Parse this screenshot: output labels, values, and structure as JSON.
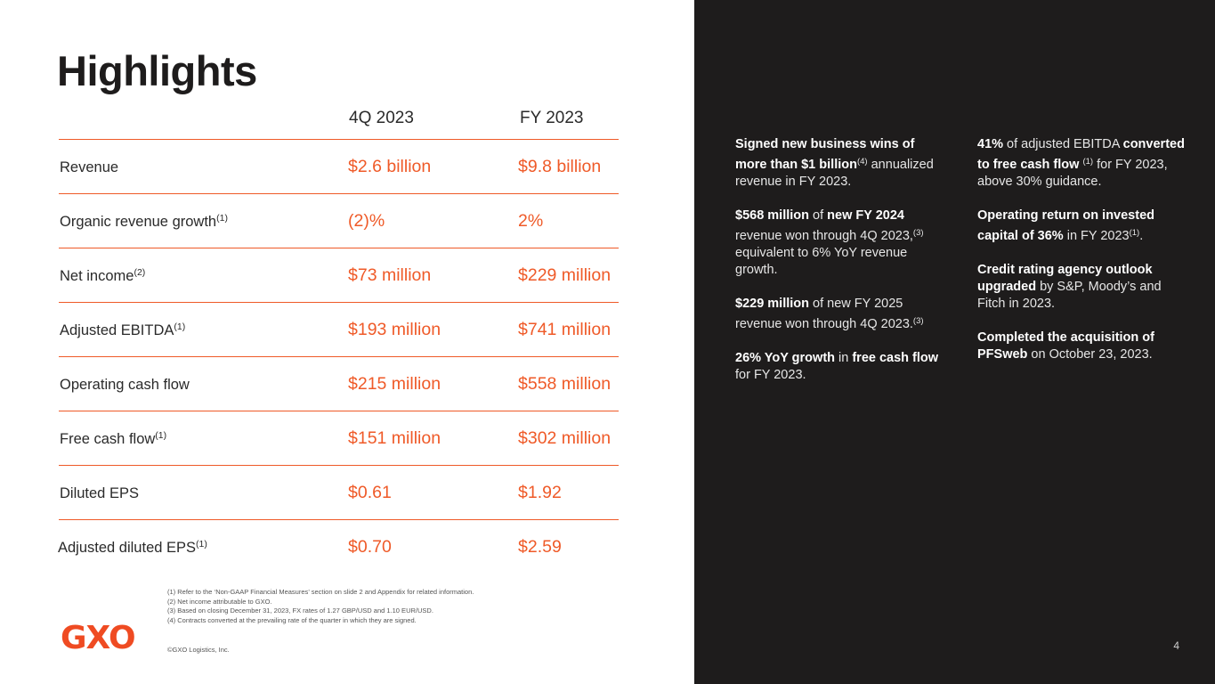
{
  "title": "Highlights",
  "columns": {
    "q": "4Q 2023",
    "fy": "FY 2023"
  },
  "rows": [
    {
      "label": "Revenue",
      "sup": "",
      "q": "$2.6 billion",
      "fy": "$9.8 billion"
    },
    {
      "label": "Organic revenue growth",
      "sup": "(1)",
      "q": "(2)%",
      "fy": "2%"
    },
    {
      "label": "Net income",
      "sup": "(2)",
      "q": "$73 million",
      "fy": "$229 million"
    },
    {
      "label": "Adjusted EBITDA",
      "sup": "(1)",
      "q": "$193 million",
      "fy": "$741 million"
    },
    {
      "label": "Operating cash flow",
      "sup": "",
      "q": "$215 million",
      "fy": "$558 million"
    },
    {
      "label": "Free cash flow",
      "sup": "(1)",
      "q": "$151 million",
      "fy": "$302 million"
    },
    {
      "label": "Diluted EPS",
      "sup": "",
      "q": "$0.61",
      "fy": "$1.92"
    },
    {
      "label": "Adjusted diluted EPS",
      "sup": "(1)",
      "q": "$0.70",
      "fy": "$2.59"
    }
  ],
  "footnotes": [
    "(1) Refer to the ‘Non-GAAP Financial Measures’ section on slide 2 and Appendix for related information.",
    "(2) Net income attributable to GXO.",
    "(3) Based on closing December 31, 2023, FX rates of 1.27 GBP/USD and 1.10 EUR/USD.",
    "(4) Contracts converted at the prevailing rate of the quarter in which they are signed."
  ],
  "logo": "GXO",
  "copyright": "©GXO Logistics, Inc.",
  "page_number": "4",
  "highlights": {
    "col1": [
      {
        "b1": "Signed new business wins of more than $1 billion",
        "sup1": "(4)",
        "t1": " annualized revenue in FY 2023."
      },
      {
        "b1": "$568 million",
        "t1": " of ",
        "b2": "new FY 2024",
        "t2": " revenue won through 4Q 2023,",
        "sup2": "(3)",
        "t3": " equivalent to 6% YoY revenue growth."
      },
      {
        "b1": "$229 million",
        "t1": " of new FY 2025 revenue won through 4Q 2023.",
        "sup1": "(3)"
      },
      {
        "b1": "26% YoY growth",
        "t1": " in ",
        "b2": "free cash flow",
        "t2": " for FY 2023."
      }
    ],
    "col2": [
      {
        "b1": "41%",
        "t1": " of adjusted EBITDA ",
        "b2": "converted to free cash flow",
        "sup2": "(1)",
        "t2": " for FY 2023, above 30% guidance."
      },
      {
        "b1": "Operating return on invested capital of 36%",
        "t1": " in FY 2023",
        "sup1": "(1)",
        "t2": "."
      },
      {
        "b1": "Credit rating agency outlook upgraded",
        "t1": " by S&P, Moody’s and Fitch in 2023."
      },
      {
        "b1": "Completed the acquisition of PFSweb",
        "t1": " on October 23, 2023."
      }
    ]
  },
  "colors": {
    "accent": "#ef5a28",
    "dark_panel": "#1e1c1c",
    "logo": "#ef4b22"
  }
}
